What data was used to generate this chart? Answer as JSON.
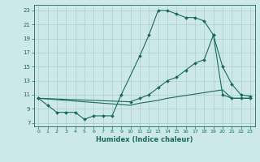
{
  "xlabel": "Humidex (Indice chaleur)",
  "background_color": "#cce8e8",
  "grid_color": "#b0cccc",
  "line_color": "#1a6b5a",
  "xlim": [
    -0.5,
    23.5
  ],
  "ylim": [
    6.5,
    23.8
  ],
  "xticks": [
    0,
    1,
    2,
    3,
    4,
    5,
    6,
    7,
    8,
    9,
    10,
    11,
    12,
    13,
    14,
    15,
    16,
    17,
    18,
    19,
    20,
    21,
    22,
    23
  ],
  "yticks": [
    7,
    9,
    11,
    13,
    15,
    17,
    19,
    21,
    23
  ],
  "line1_x": [
    0,
    1,
    2,
    3,
    4,
    5,
    6,
    7,
    8,
    9,
    11,
    12,
    13,
    14,
    15,
    16,
    17,
    18,
    19,
    20,
    21,
    22,
    23
  ],
  "line1_y": [
    10.5,
    9.5,
    8.5,
    8.5,
    8.5,
    7.5,
    8.0,
    8.0,
    8.0,
    11.0,
    16.5,
    19.5,
    23.0,
    23.0,
    22.5,
    22.0,
    22.0,
    21.5,
    19.5,
    11.0,
    10.5,
    10.5,
    10.5
  ],
  "line2_x": [
    0,
    10,
    11,
    12,
    13,
    14,
    15,
    16,
    17,
    18,
    19,
    20,
    21,
    22,
    23
  ],
  "line2_y": [
    10.5,
    10.0,
    10.5,
    11.0,
    12.0,
    13.0,
    13.5,
    14.5,
    15.5,
    16.0,
    19.5,
    15.0,
    12.5,
    11.0,
    10.8
  ],
  "line3_x": [
    0,
    10,
    11,
    12,
    13,
    14,
    15,
    16,
    17,
    18,
    19,
    20,
    21,
    22,
    23
  ],
  "line3_y": [
    10.5,
    9.5,
    9.8,
    10.0,
    10.2,
    10.5,
    10.7,
    10.9,
    11.1,
    11.3,
    11.5,
    11.7,
    10.5,
    10.5,
    10.5
  ]
}
